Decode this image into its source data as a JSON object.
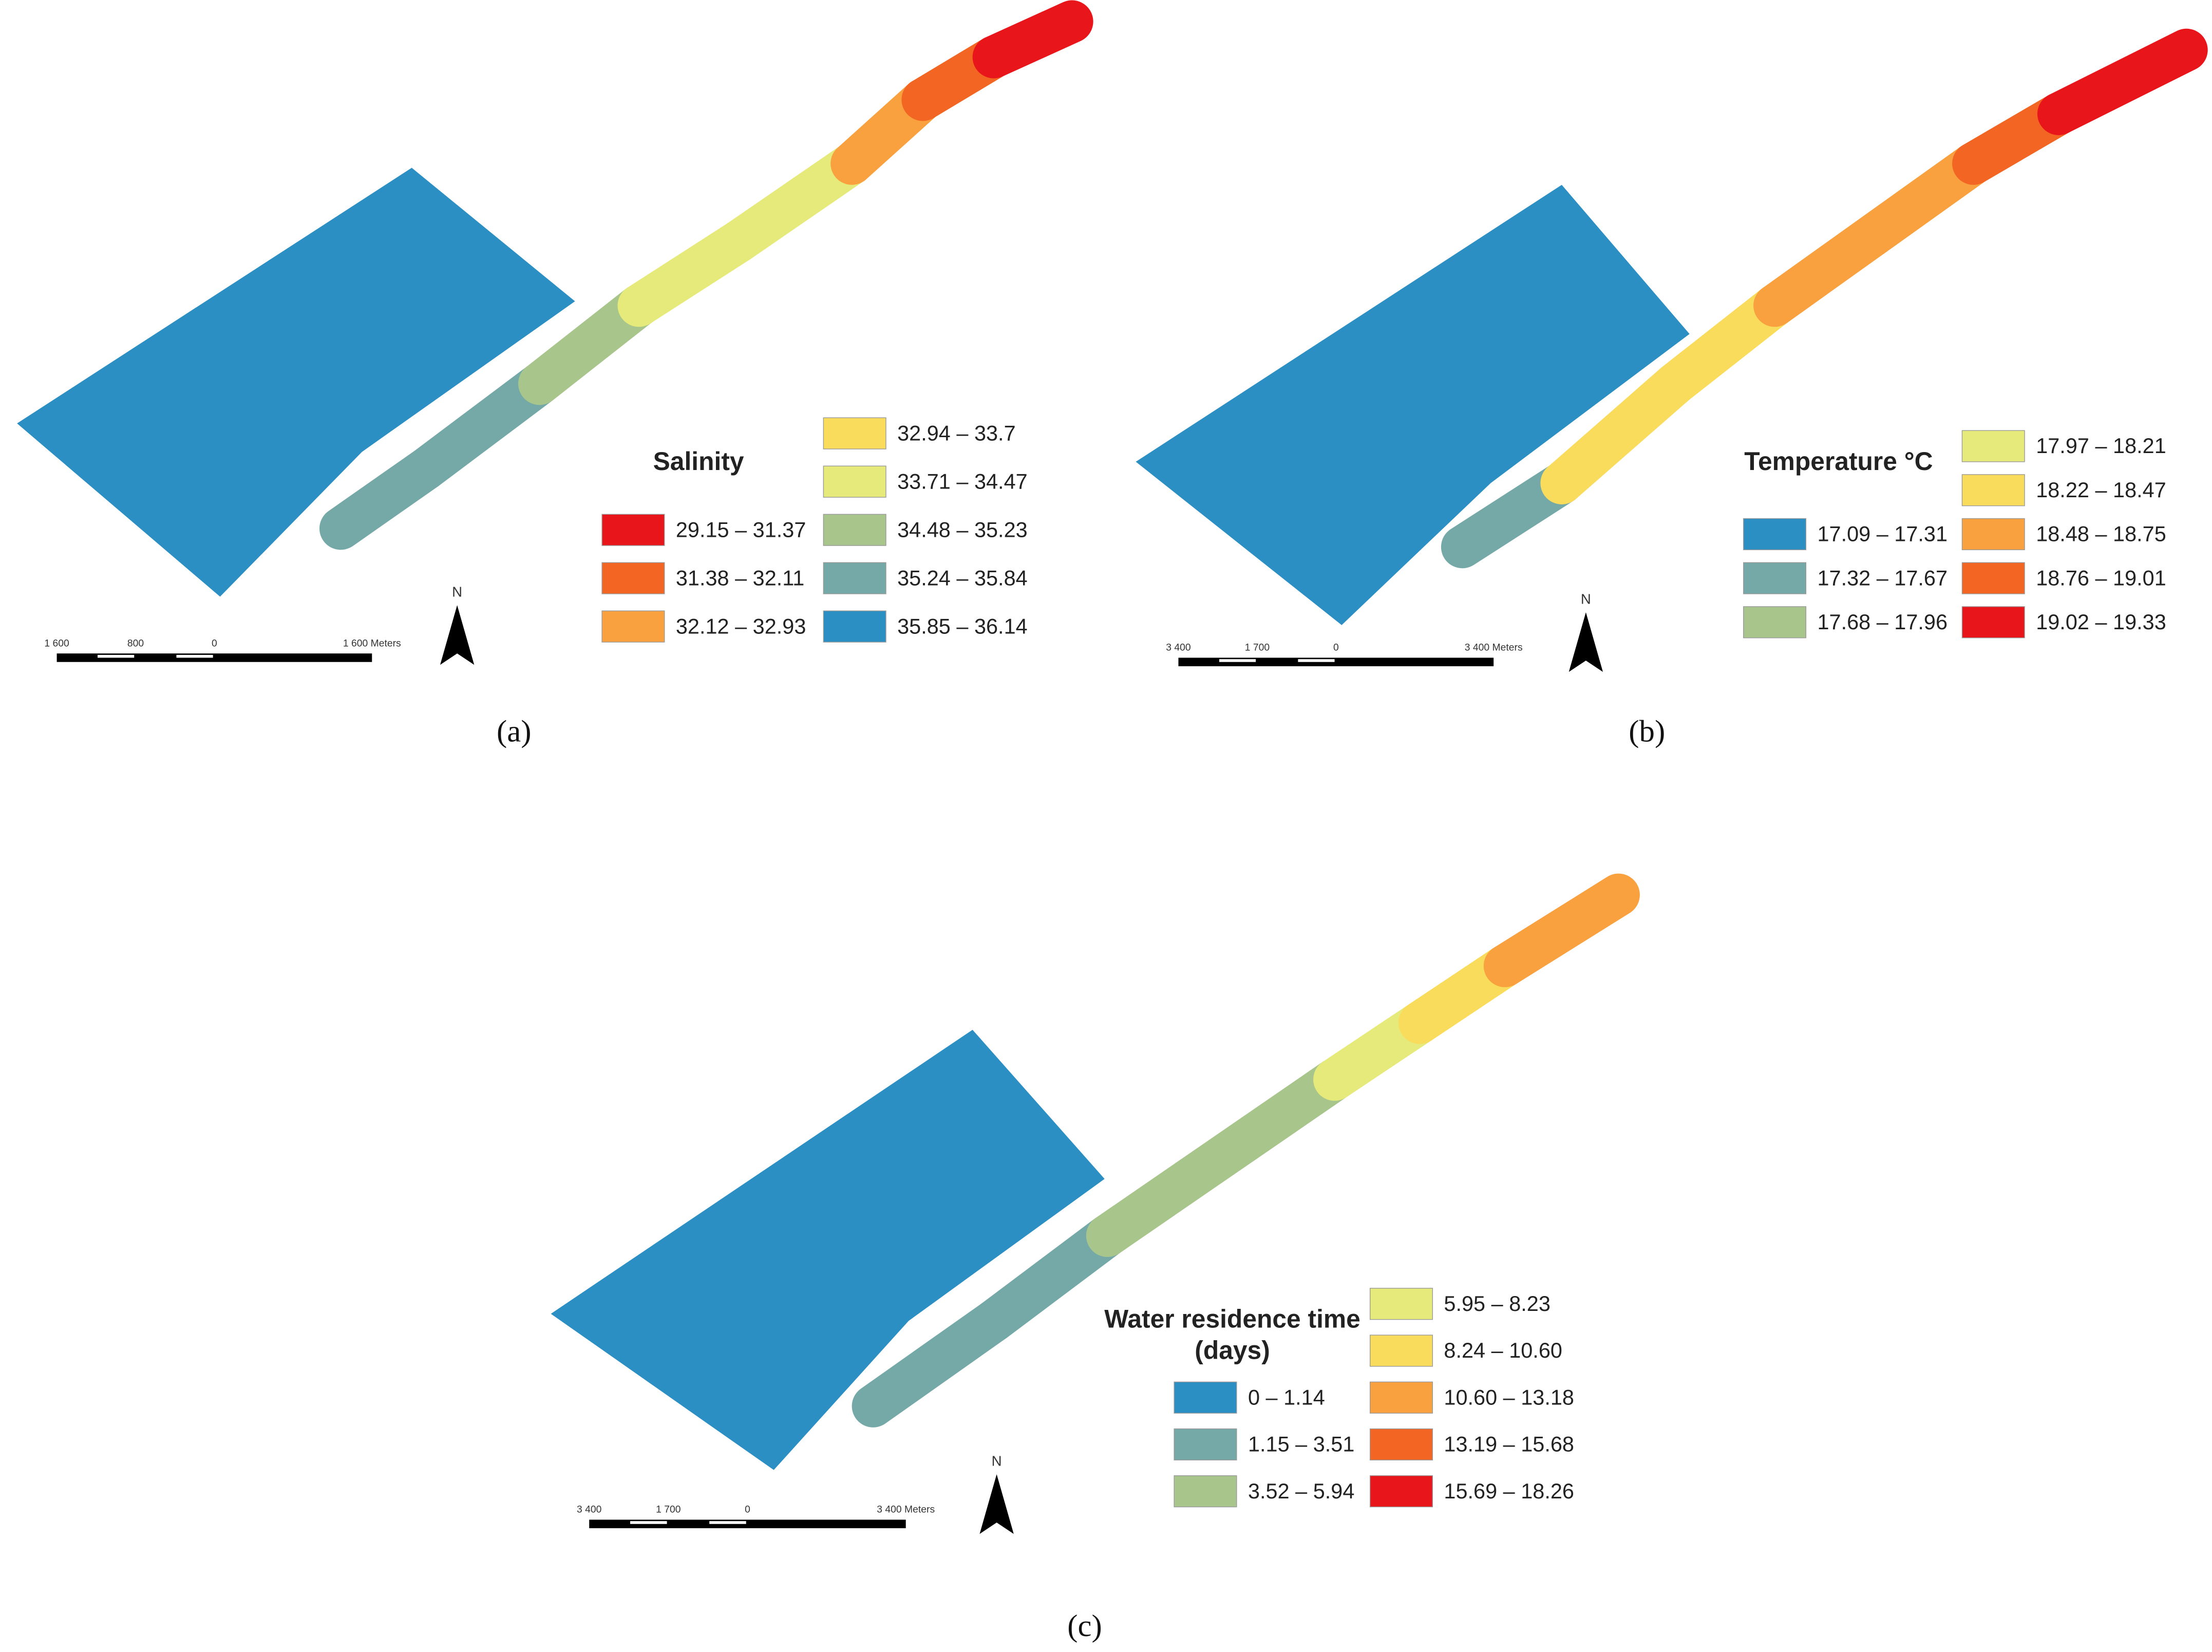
{
  "panels": [
    {
      "caption": "(a)",
      "north": "N",
      "scale_bar": [
        "1 600",
        "800",
        "0",
        "1 600 Meters"
      ],
      "legend": {
        "title": [
          "Salinity"
        ],
        "classes": [
          {
            "label": "29.15 – 31.37",
            "color": "#e8161b"
          },
          {
            "label": "31.38 – 32.11",
            "color": "#f26522"
          },
          {
            "label": "32.12 – 32.93",
            "color": "#f9a03f"
          },
          {
            "label": "32.94 – 33.7",
            "color": "#f9dc5c"
          },
          {
            "label": "33.71 – 34.47",
            "color": "#e6ea7a"
          },
          {
            "label": "34.48 – 35.23",
            "color": "#a8c58c"
          },
          {
            "label": "35.24 – 35.84",
            "color": "#74a9a8"
          },
          {
            "label": "35.85 – 36.14",
            "color": "#2b8fc4"
          }
        ]
      }
    },
    {
      "caption": "(b)",
      "north": "N",
      "scale_bar": [
        "3 400",
        "1 700",
        "0",
        "3 400 Meters"
      ],
      "legend": {
        "title": [
          "Temperature °C"
        ],
        "classes": [
          {
            "label": "17.09 – 17.31",
            "color": "#2b8fc4"
          },
          {
            "label": "17.32 – 17.67",
            "color": "#74a9a8"
          },
          {
            "label": "17.68 – 17.96",
            "color": "#a8c58c"
          },
          {
            "label": "17.97 – 18.21",
            "color": "#e6ea7a"
          },
          {
            "label": "18.22 – 18.47",
            "color": "#f9dc5c"
          },
          {
            "label": "18.48 – 18.75",
            "color": "#f9a03f"
          },
          {
            "label": "18.76 – 19.01",
            "color": "#f26522"
          },
          {
            "label": "19.02 – 19.33",
            "color": "#e8161b"
          }
        ]
      }
    },
    {
      "caption": "(c)",
      "north": "N",
      "scale_bar": [
        "3 400",
        "1 700",
        "0",
        "3 400 Meters"
      ],
      "legend": {
        "title": [
          "Water residence time",
          "(days)"
        ],
        "classes": [
          {
            "label": "0 – 1.14",
            "color": "#2b8fc4"
          },
          {
            "label": "1.15 – 3.51",
            "color": "#74a9a8"
          },
          {
            "label": "3.52 – 5.94",
            "color": "#a8c58c"
          },
          {
            "label": "5.95 – 8.23",
            "color": "#e6ea7a"
          },
          {
            "label": "8.24 – 10.60",
            "color": "#f9dc5c"
          },
          {
            "label": "10.60 – 13.18",
            "color": "#f9a03f"
          },
          {
            "label": "13.19 – 15.68",
            "color": "#f26522"
          },
          {
            "label": "15.69 – 18.26",
            "color": "#e8161b"
          }
        ]
      }
    }
  ]
}
